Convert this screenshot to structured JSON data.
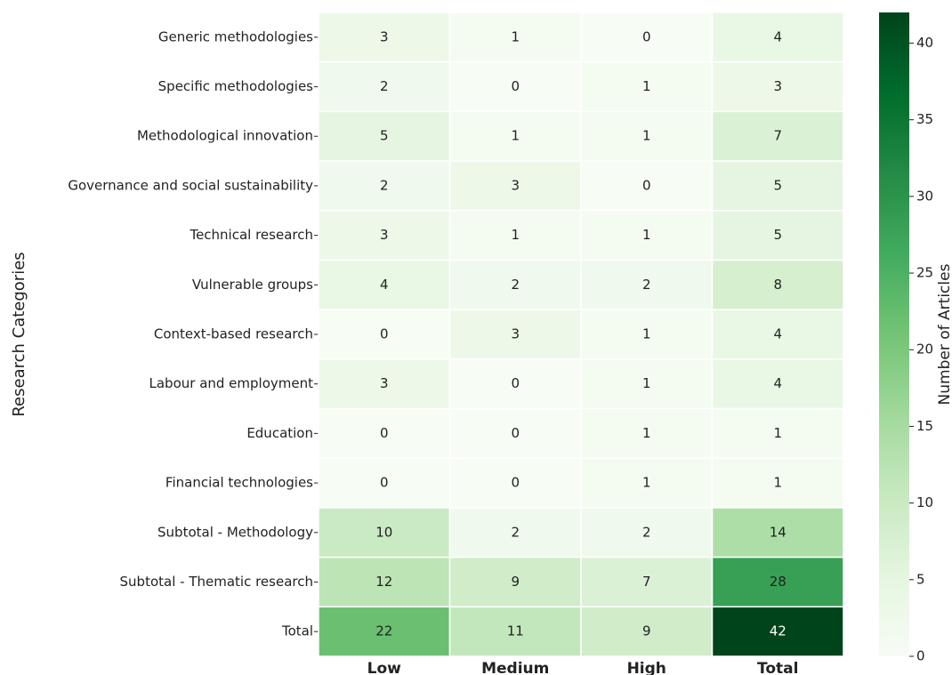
{
  "chart_data": {
    "type": "heatmap",
    "ylabel": "Research Categories",
    "rows": [
      "Generic methodologies",
      "Specific methodologies",
      "Methodological innovation",
      "Governance and social sustainability",
      "Technical research",
      "Vulnerable groups",
      "Context-based research",
      "Labour and employment",
      "Education",
      "Financial technologies",
      "Subtotal - Methodology",
      "Subtotal - Thematic research",
      "Total"
    ],
    "columns": [
      "Low",
      "Medium",
      "High",
      "Total"
    ],
    "values": [
      [
        3,
        1,
        0,
        4
      ],
      [
        2,
        0,
        1,
        3
      ],
      [
        5,
        1,
        1,
        7
      ],
      [
        2,
        3,
        0,
        5
      ],
      [
        3,
        1,
        1,
        5
      ],
      [
        4,
        2,
        2,
        8
      ],
      [
        0,
        3,
        1,
        4
      ],
      [
        3,
        0,
        1,
        4
      ],
      [
        0,
        0,
        1,
        1
      ],
      [
        0,
        0,
        1,
        1
      ],
      [
        10,
        2,
        2,
        14
      ],
      [
        12,
        9,
        7,
        28
      ],
      [
        22,
        11,
        9,
        42
      ]
    ],
    "colormap": "Greens",
    "colorbar_label": "Number of Articles",
    "zlim": [
      0,
      42
    ],
    "zticks": [
      0,
      5,
      10,
      15,
      20,
      25,
      30,
      35,
      40
    ]
  }
}
